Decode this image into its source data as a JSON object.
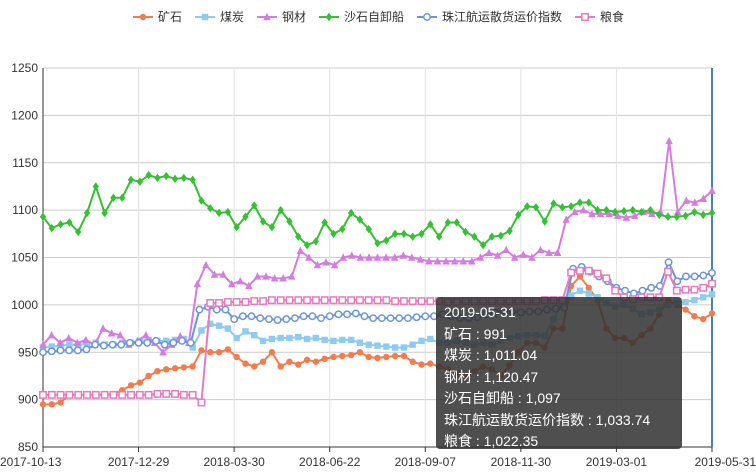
{
  "chart_data": {
    "type": "line",
    "y_axis": {
      "min": 850,
      "max": 1250,
      "interval": 50,
      "ticks": [
        "850",
        "900",
        "950",
        "1000",
        "1050",
        "1100",
        "1150",
        "1200",
        "1250"
      ]
    },
    "x_tick_labels": [
      "2017-10-13",
      "2017-12-29",
      "2018-03-30",
      "2018-06-22",
      "2018-09-07",
      "2018-11-30",
      "2019-03-01",
      "2019-05-31"
    ],
    "grid": true,
    "legend_position": "top",
    "series": [
      {
        "name": "矿石",
        "color": "#f47c4c",
        "marker": "circle",
        "values": [
          895,
          895,
          897,
          905,
          905,
          905,
          905,
          905,
          906,
          910,
          915,
          918,
          925,
          930,
          932,
          933,
          934,
          935,
          952,
          950,
          950,
          953,
          945,
          938,
          935,
          940,
          950,
          935,
          940,
          937,
          942,
          940,
          943,
          945,
          946,
          947,
          950,
          945,
          944,
          945,
          946,
          946,
          940,
          937,
          938,
          935,
          932,
          928,
          925,
          930,
          935,
          932,
          925,
          936,
          950,
          960,
          960,
          955,
          975,
          975,
          1020,
          1030,
          1018,
          1005,
          975,
          965,
          965,
          960,
          968,
          975,
          990,
          1005,
          1000,
          995,
          988,
          985,
          991
        ]
      },
      {
        "name": "煤炭",
        "color": "#8ecbf2",
        "marker": "square",
        "values": [
          955,
          956,
          957,
          958,
          958,
          959,
          960,
          958,
          958,
          960,
          960,
          962,
          963,
          962,
          962,
          963,
          964,
          955,
          973,
          980,
          978,
          975,
          965,
          972,
          968,
          962,
          964,
          965,
          965,
          966,
          964,
          965,
          963,
          962,
          963,
          963,
          960,
          958,
          957,
          956,
          955,
          955,
          958,
          962,
          964,
          960,
          960,
          962,
          960,
          958,
          960,
          958,
          962,
          965,
          967,
          968,
          968,
          967,
          985,
          1002,
          1010,
          1015,
          1012,
          1008,
          1002,
          998,
          1000,
          996,
          990,
          992,
          995,
          1000,
          1002,
          1003,
          1005,
          1008,
          1011.04
        ]
      },
      {
        "name": "钢材",
        "color": "#d67be2",
        "marker": "triangle",
        "values": [
          958,
          968,
          960,
          965,
          960,
          963,
          958,
          975,
          970,
          968,
          958,
          962,
          968,
          960,
          950,
          958,
          967,
          960,
          1022,
          1042,
          1032,
          1032,
          1022,
          1025,
          1020,
          1030,
          1030,
          1028,
          1028,
          1030,
          1057,
          1050,
          1042,
          1045,
          1042,
          1050,
          1052,
          1050,
          1050,
          1050,
          1050,
          1050,
          1052,
          1050,
          1048,
          1046,
          1046,
          1046,
          1046,
          1046,
          1046,
          1050,
          1055,
          1052,
          1058,
          1050,
          1053,
          1050,
          1058,
          1055,
          1055,
          1090,
          1098,
          1100,
          1096,
          1096,
          1096,
          1094,
          1092,
          1094,
          1098,
          1096,
          1098,
          1173,
          1098,
          1110,
          1108,
          1112,
          1120.47
        ]
      },
      {
        "name": "沙石自卸船",
        "color": "#34c232",
        "marker": "diamond",
        "values": [
          1093,
          1081,
          1085,
          1087,
          1077,
          1097,
          1125,
          1097,
          1113,
          1113,
          1132,
          1130,
          1137,
          1134,
          1136,
          1133,
          1134,
          1132,
          1110,
          1102,
          1097,
          1098,
          1082,
          1093,
          1105,
          1088,
          1082,
          1100,
          1088,
          1072,
          1063,
          1067,
          1087,
          1075,
          1080,
          1097,
          1090,
          1080,
          1065,
          1068,
          1075,
          1075,
          1072,
          1075,
          1085,
          1072,
          1087,
          1087,
          1077,
          1072,
          1063,
          1072,
          1073,
          1078,
          1095,
          1104,
          1103,
          1088,
          1107,
          1103,
          1104,
          1108,
          1108,
          1100,
          1100,
          1098,
          1099,
          1100,
          1098,
          1100,
          1095,
          1093,
          1093,
          1094,
          1098,
          1095,
          1097
        ]
      },
      {
        "name": "珠江航运散货运价指数",
        "color": "#6b95db",
        "marker": "emptyCircle",
        "values": [
          950,
          951,
          952,
          952,
          952,
          953,
          958,
          957,
          958,
          958,
          960,
          960,
          960,
          962,
          958,
          960,
          962,
          960,
          995,
          998,
          995,
          995,
          985,
          988,
          988,
          986,
          985,
          984,
          985,
          986,
          988,
          988,
          986,
          988,
          990,
          990,
          991,
          988,
          986,
          986,
          986,
          986,
          986,
          987,
          988,
          988,
          990,
          988,
          986,
          986,
          987,
          990,
          992,
          994,
          993,
          992,
          993,
          993,
          995,
          996,
          997,
          1038,
          1040,
          1035,
          1030,
          1025,
          1018,
          1015,
          1012,
          1015,
          1018,
          1020,
          1045,
          1025,
          1030,
          1030,
          1031,
          1033.74
        ]
      },
      {
        "name": "粮食",
        "color": "#e77ac0",
        "marker": "emptySquare",
        "values": [
          905,
          905,
          905,
          905,
          905,
          905,
          905,
          905,
          905,
          905,
          905,
          905,
          905,
          906,
          906,
          906,
          905,
          905,
          897,
          1002,
          1002,
          1003,
          1003,
          1003,
          1004,
          1004,
          1005,
          1005,
          1005,
          1005,
          1005,
          1005,
          1005,
          1005,
          1005,
          1005,
          1005,
          1005,
          1005,
          1005,
          1004,
          1004,
          1004,
          1004,
          1004,
          1004,
          1003,
          1003,
          1004,
          1004,
          1004,
          1004,
          1004,
          1004,
          1004,
          1004,
          1004,
          1005,
          1005,
          1005,
          1034,
          1036,
          1036,
          1033,
          1028,
          1015,
          1008,
          1006,
          1008,
          1008,
          1008,
          1035,
          1015,
          1016,
          1016,
          1018,
          1022.35
        ]
      }
    ]
  },
  "tooltip": {
    "date": "2019-05-31",
    "rows": [
      "矿石 : 991",
      "煤炭 : 1,011.04",
      "钢材 : 1,120.47",
      "沙石自卸船 : 1,097",
      "珠江航运散货运价指数 : 1,033.74",
      "粮食 : 1,022.35"
    ]
  }
}
